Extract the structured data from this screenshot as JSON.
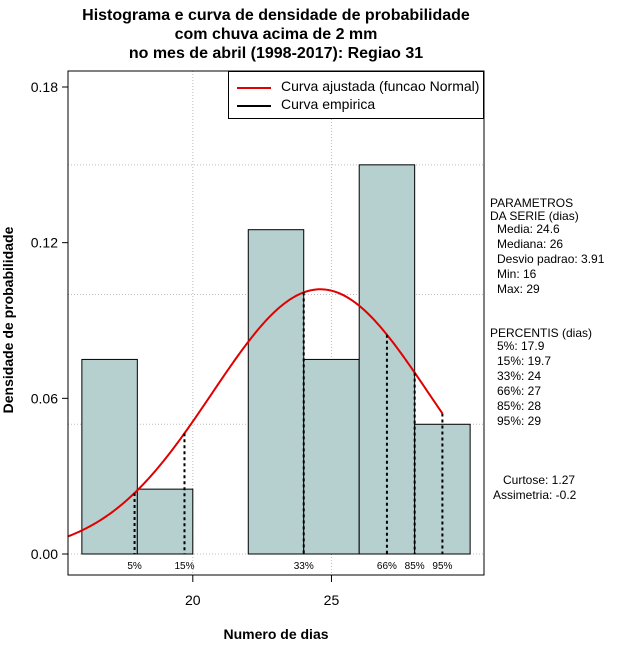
{
  "title": {
    "line1": "Histograma e curva de densidade de probabilidade",
    "line2": "com chuva acima de 2 mm",
    "line3": "no mes de abril (1998-2017): Regiao 31"
  },
  "colors": {
    "bar_fill": "#b6cfcf",
    "curve": "#e00000",
    "grid": "#bdbdbd"
  },
  "legend": {
    "items": [
      {
        "label": "Curva ajustada (funcao Normal)",
        "color": "#e00000"
      },
      {
        "label": "Curva empirica",
        "color": "#000000"
      }
    ]
  },
  "parametros": {
    "heading1": "PARAMETROS",
    "heading2": "DA SERIE (dias)",
    "lines": [
      "Media: 24.6",
      "Mediana: 26",
      "Desvio padrao: 3.91",
      "Min: 16",
      "Max: 29"
    ]
  },
  "percentis": {
    "heading": "PERCENTIS (dias)",
    "lines": [
      "5%: 17.9",
      "15%: 19.7",
      "33%: 24",
      "66%: 27",
      "85%: 28",
      "95%: 29"
    ]
  },
  "shape": {
    "curtose": "Curtose: 1.27",
    "assimetria": "Assimetria: -0.2"
  },
  "chart_data": {
    "type": "bar",
    "title": "Histograma e curva de densidade de probabilidade com chuva acima de 2 mm no mes de abril (1998-2017): Regiao 31",
    "xlabel": "Numero de dias",
    "ylabel": "Densidade de probabilidade",
    "xlim": [
      15.5,
      30.5
    ],
    "ylim": [
      0,
      0.18
    ],
    "x_ticks": [
      20,
      25
    ],
    "y_ticks": [
      0.0,
      0.06,
      0.12,
      0.18
    ],
    "y_tick_labels": [
      "0.00",
      "0.06",
      "0.12",
      "0.18"
    ],
    "bins": [
      {
        "start": 16,
        "end": 18,
        "density": 0.075
      },
      {
        "start": 18,
        "end": 20,
        "density": 0.025
      },
      {
        "start": 20,
        "end": 22,
        "density": 0.0
      },
      {
        "start": 22,
        "end": 24,
        "density": 0.125
      },
      {
        "start": 24,
        "end": 26,
        "density": 0.075
      },
      {
        "start": 26,
        "end": 28,
        "density": 0.15
      },
      {
        "start": 28,
        "end": 30,
        "density": 0.05
      }
    ],
    "grid_h": [
      0.0,
      0.05,
      0.1,
      0.15
    ],
    "grid_v": [
      20,
      25
    ],
    "normal_curve": {
      "mean": 24.6,
      "sd": 3.91,
      "x_from": 15.5,
      "x_to": 29
    },
    "percentile_markers": [
      {
        "label": "5%",
        "x": 17.9
      },
      {
        "label": "15%",
        "x": 19.7
      },
      {
        "label": "33%",
        "x": 24
      },
      {
        "label": "66%",
        "x": 27
      },
      {
        "label": "85%",
        "x": 28
      },
      {
        "label": "95%",
        "x": 29
      }
    ]
  }
}
